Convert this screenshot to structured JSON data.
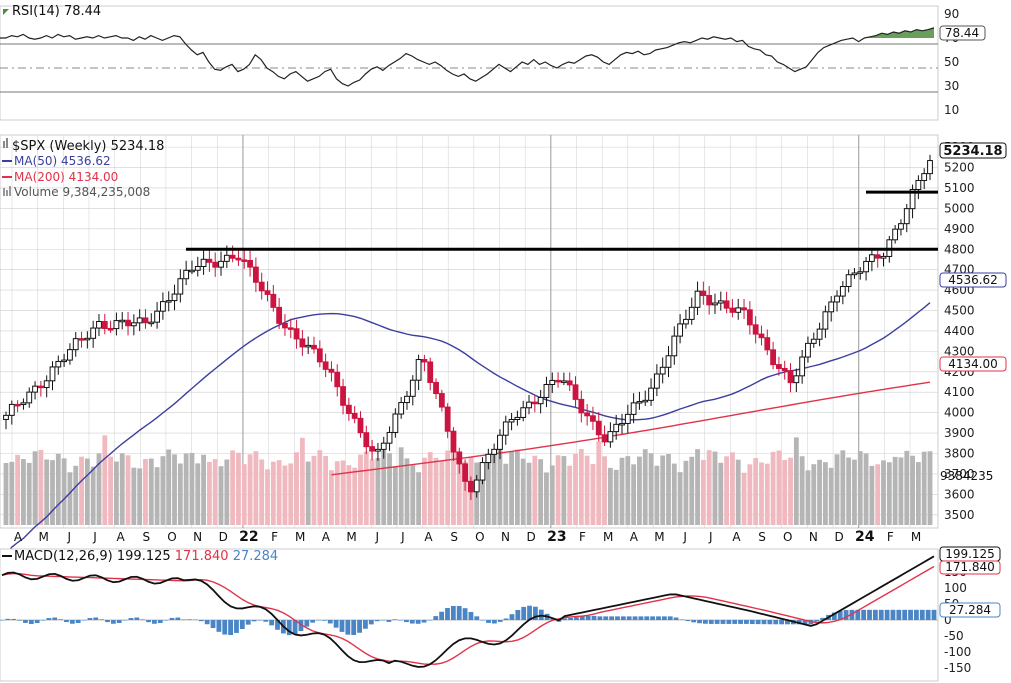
{
  "rsi": {
    "label": "RSI(14)",
    "value": "78.44",
    "ticks": [
      "90",
      "70",
      "50",
      "30",
      "10"
    ],
    "overbought": 70,
    "oversold": 30,
    "values": [
      70,
      70,
      72,
      71,
      73,
      70,
      69,
      70,
      72,
      70,
      73,
      71,
      72,
      69,
      70,
      71,
      70,
      72,
      70,
      71,
      72,
      70,
      70,
      68,
      71,
      69,
      72,
      70,
      68,
      70,
      72,
      71,
      65,
      60,
      56,
      58,
      50,
      44,
      43,
      46,
      48,
      42,
      44,
      48,
      56,
      52,
      45,
      42,
      38,
      36,
      40,
      42,
      38,
      34,
      36,
      38,
      42,
      44,
      36,
      32,
      30,
      33,
      35,
      40,
      44,
      46,
      43,
      47,
      50,
      53,
      57,
      55,
      52,
      50,
      48,
      50,
      47,
      43,
      40,
      38,
      40,
      36,
      34,
      37,
      40,
      44,
      48,
      45,
      42,
      46,
      50,
      48,
      52,
      48,
      50,
      47,
      45,
      48,
      50,
      49,
      52,
      55,
      56,
      54,
      50,
      48,
      52,
      56,
      58,
      57,
      59,
      56,
      57,
      60,
      61,
      62,
      64,
      66,
      67,
      66,
      68,
      70,
      69,
      71,
      70,
      69,
      70,
      67,
      68,
      63,
      61,
      60,
      56,
      55,
      50,
      48,
      45,
      42,
      44,
      46,
      52,
      58,
      62,
      64,
      66,
      68,
      69,
      70,
      67,
      70,
      71,
      72,
      74,
      73,
      75,
      74,
      76,
      75,
      77,
      76,
      77,
      78.44
    ]
  },
  "price": {
    "symbol": "$SPX (Weekly)",
    "value": "5234.18",
    "ma50_label": "MA(50)",
    "ma50_value": "4536.62",
    "ma200_label": "MA(200)",
    "ma200_value": "4134.00",
    "volume_label": "Volume",
    "volume_value": "9,384,235,008",
    "volume_tag": "9384235",
    "ticks": [
      "5300",
      "5200",
      "5100",
      "5000",
      "4900",
      "4800",
      "4700",
      "4600",
      "4500",
      "4400",
      "4300",
      "4200",
      "4100",
      "4000",
      "3900",
      "3800",
      "3700",
      "3600",
      "3500"
    ],
    "resistance_levels": [
      4800,
      5080
    ]
  },
  "x_axis": {
    "labels": [
      "A",
      "M",
      "J",
      "J",
      "A",
      "S",
      "O",
      "N",
      "D",
      "22",
      "F",
      "M",
      "A",
      "M",
      "J",
      "J",
      "A",
      "S",
      "O",
      "N",
      "D",
      "23",
      "F",
      "M",
      "A",
      "M",
      "J",
      "J",
      "A",
      "S",
      "O",
      "N",
      "D",
      "24",
      "F",
      "M"
    ]
  },
  "macd": {
    "label": "MACD(12,26,9)",
    "value1": "199.125",
    "value2": "171.840",
    "value3": "27.284",
    "ticks": [
      "150",
      "100",
      "50",
      "0",
      "-50",
      "-100",
      "-150"
    ]
  },
  "colors": {
    "up": "#111111",
    "down": "#cc1440",
    "ma50": "#3b3f9e",
    "ma200": "#e0334a",
    "vol_up": "#b5b5b5",
    "vol_down": "#f0b8bf",
    "macd_hist": "#4a86c5",
    "rsi_fill": "#4d8f3e",
    "grid": "#cfcfcf"
  },
  "chart_data": {
    "type": "line",
    "title": "$SPX (Weekly)",
    "last_close": 5234.18,
    "ylim": [
      3450,
      5330
    ],
    "series": [
      {
        "name": "$SPX (Weekly)",
        "x": [
          "2021-04",
          "2021-06",
          "2021-08",
          "2021-10",
          "2021-12",
          "2022-01",
          "2022-03",
          "2022-04",
          "2022-06",
          "2022-08",
          "2022-10",
          "2022-12",
          "2023-02",
          "2023-03",
          "2023-05",
          "2023-07",
          "2023-08",
          "2023-10",
          "2023-11",
          "2024-01",
          "2024-03"
        ],
        "values": [
          3975,
          4210,
          4440,
          4430,
          4700,
          4780,
          4440,
          4200,
          3760,
          4280,
          3620,
          3990,
          4170,
          3860,
          4140,
          4590,
          4470,
          4140,
          4610,
          4790,
          5234.18
        ]
      },
      {
        "name": "MA(50)",
        "value": 4536.62
      },
      {
        "name": "MA(200)",
        "value": 4134.0
      }
    ],
    "indicators": {
      "RSI(14)": 78.44,
      "MACD(12,26,9)": [
        199.125,
        171.84,
        27.284
      ]
    }
  }
}
